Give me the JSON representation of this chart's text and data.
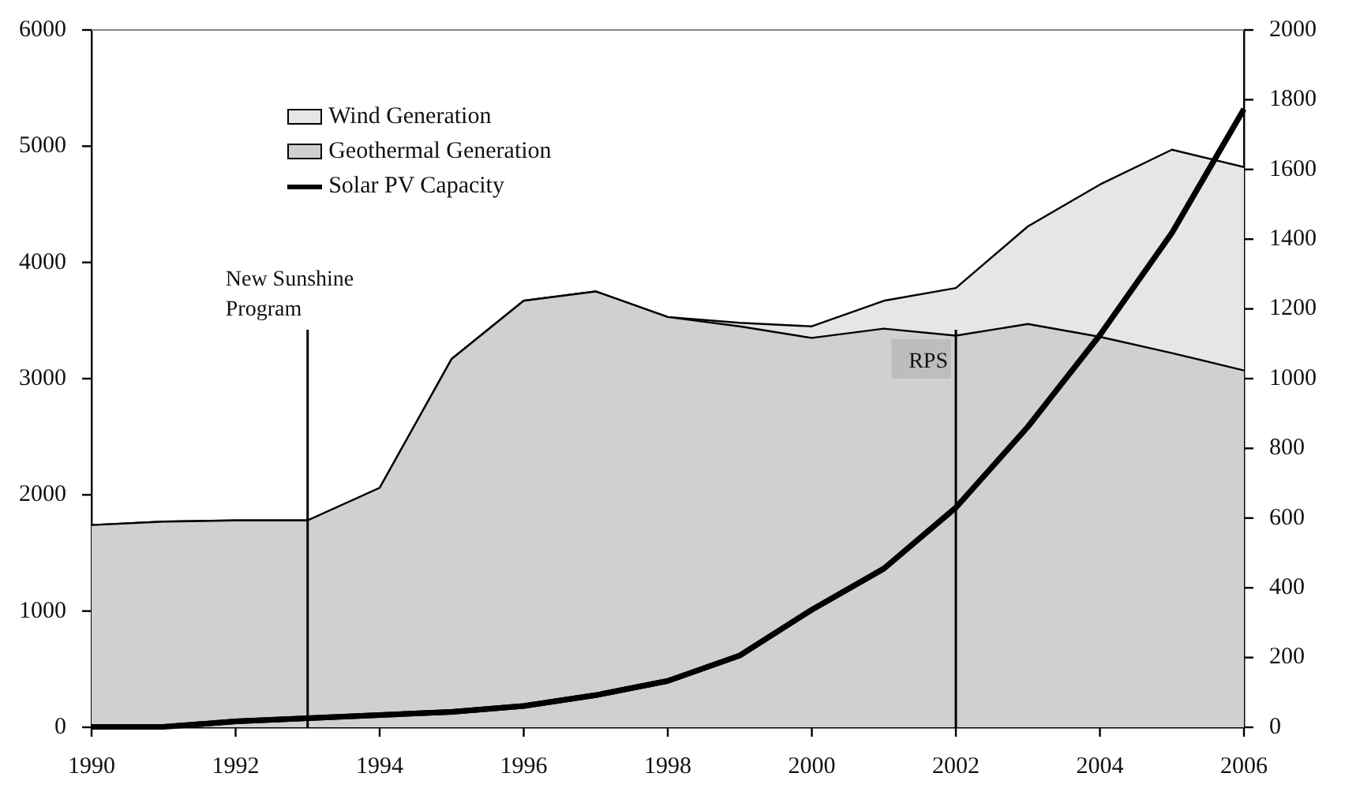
{
  "chart_data": {
    "type": "area",
    "stacked": true,
    "x": [
      1990,
      1991,
      1992,
      1993,
      1994,
      1995,
      1996,
      1997,
      1998,
      1999,
      2000,
      2001,
      2002,
      2003,
      2004,
      2005,
      2006
    ],
    "series": [
      {
        "name": "Geothermal Generation",
        "color": "#d0d0d0",
        "values": [
          1740,
          1770,
          1780,
          1780,
          2060,
          3170,
          3670,
          3750,
          3530,
          3450,
          3350,
          3430,
          3370,
          3470,
          3360,
          3220,
          3070
        ]
      },
      {
        "name": "Wind Generation",
        "color": "#e6e6e6",
        "values": [
          0,
          0,
          0,
          0,
          0,
          0,
          0,
          0,
          0,
          30,
          100,
          240,
          410,
          840,
          1310,
          1750,
          1750
        ]
      },
      {
        "name": "Solar PV Capacity",
        "type": "line",
        "axis": "y2",
        "color": "#000000",
        "values": [
          1,
          1,
          17,
          26,
          35,
          44,
          61,
          92,
          133,
          206,
          337,
          455,
          630,
          862,
          1125,
          1418,
          1773
        ]
      }
    ],
    "xlim": [
      1990,
      2006
    ],
    "xticks": [
      1990,
      1992,
      1994,
      1996,
      1998,
      2000,
      2002,
      2004,
      2006
    ],
    "ylim": [
      0,
      6000
    ],
    "yticks": [
      0,
      1000,
      2000,
      3000,
      4000,
      5000,
      6000
    ],
    "y2lim": [
      0,
      2000
    ],
    "y2ticks": [
      0,
      200,
      400,
      600,
      800,
      1000,
      1200,
      1400,
      1600,
      1800,
      2000
    ],
    "ref_lines": [
      {
        "axis": "x",
        "value": 1993,
        "label": "New Sunshine\nProgram"
      },
      {
        "axis": "x",
        "value": 2002,
        "label": "RPS"
      }
    ],
    "grid": false,
    "legend": "top left",
    "marker": "none",
    "line_style": "solid"
  }
}
